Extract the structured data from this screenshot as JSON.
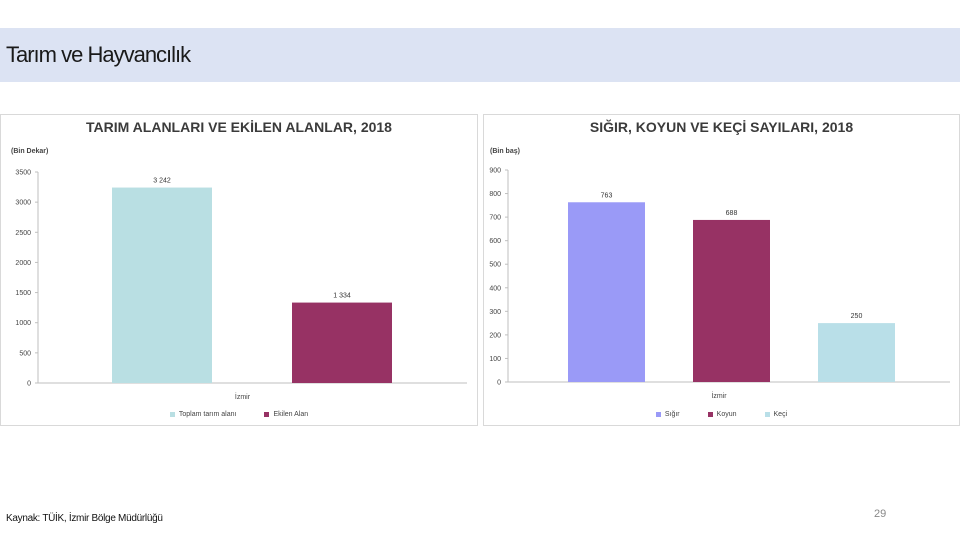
{
  "slide": {
    "title": "Tarım ve Hayvancılık",
    "source": "Kaynak: TÜİK, İzmir Bölge Müdürlüğü",
    "page_number": "29"
  },
  "chart_data": [
    {
      "type": "bar",
      "title": "TARIM ALANLARI VE EKİLEN ALANLAR, 2018",
      "unit": "(Bin Dekar)",
      "xlabel": "İzmir",
      "categories": [
        "İzmir"
      ],
      "series": [
        {
          "name": "Toplam tarım alanı",
          "values": [
            3242
          ],
          "label": "3 242",
          "color": "#b9dfe3"
        },
        {
          "name": "Ekilen Alan",
          "values": [
            1334
          ],
          "label": "1 334",
          "color": "#973264"
        }
      ],
      "ylim": [
        0,
        3500
      ],
      "yticks": [
        0,
        500,
        1000,
        1500,
        2000,
        2500,
        3000,
        3500
      ],
      "grid": false,
      "legend_position": "bottom"
    },
    {
      "type": "bar",
      "title": "SIĞIR, KOYUN VE KEÇİ SAYILARI, 2018",
      "unit": "(Bin baş)",
      "xlabel": "İzmir",
      "categories": [
        "İzmir"
      ],
      "series": [
        {
          "name": "Sığır",
          "values": [
            763
          ],
          "label": "763",
          "color": "#9a9af7"
        },
        {
          "name": "Koyun",
          "values": [
            688
          ],
          "label": "688",
          "color": "#973264"
        },
        {
          "name": "Keçi",
          "values": [
            250
          ],
          "label": "250",
          "color": "#b9dfe8"
        }
      ],
      "ylim": [
        0,
        900
      ],
      "yticks": [
        0,
        100,
        200,
        300,
        400,
        500,
        600,
        700,
        800,
        900
      ],
      "grid": false,
      "legend_position": "bottom"
    }
  ]
}
